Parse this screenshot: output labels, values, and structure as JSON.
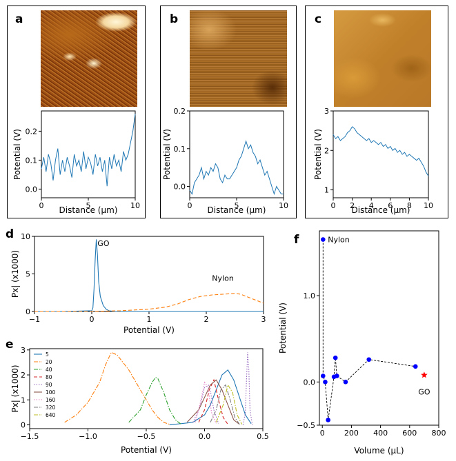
{
  "panel_letters": {
    "a": "a",
    "b": "b",
    "c": "c",
    "d": "d",
    "e": "e",
    "f": "f"
  },
  "colors": {
    "line_blue": "#1f77b4",
    "line_orange": "#ff7f0e",
    "line_green": "#2ca02c",
    "line_red": "#d62728",
    "line_purple": "#9467bd",
    "line_brown": "#8c564b",
    "line_pink": "#e377c2",
    "line_gray": "#7f7f7f",
    "line_olive": "#bcbd22",
    "point_blue": "#0000ff",
    "star_red": "#ff0000"
  },
  "chart_data": [
    {
      "id": "a",
      "type": "line",
      "image": "kpfm-map-a",
      "xlabel": "Distance (μm)",
      "ylabel": "Potential (V)",
      "xlim": [
        0,
        10
      ],
      "ylim": [
        -0.03,
        0.27
      ],
      "xticks": [
        0,
        5,
        10
      ],
      "yticks": [
        0.0,
        0.1,
        0.2
      ],
      "xtick_labels": [
        "0",
        "5",
        "10"
      ],
      "ytick_labels": [
        "0.0",
        "0.1",
        "0.2"
      ],
      "x": [
        0,
        0.25,
        0.5,
        0.75,
        1,
        1.25,
        1.5,
        1.75,
        2,
        2.25,
        2.5,
        2.75,
        3,
        3.25,
        3.5,
        3.75,
        4,
        4.25,
        4.5,
        4.75,
        5,
        5.25,
        5.5,
        5.75,
        6,
        6.25,
        6.5,
        6.75,
        7,
        7.25,
        7.5,
        7.75,
        8,
        8.25,
        8.5,
        8.75,
        9,
        9.25,
        9.5,
        9.75,
        10
      ],
      "y": [
        0.07,
        0.11,
        0.06,
        0.12,
        0.09,
        0.03,
        0.1,
        0.14,
        0.05,
        0.1,
        0.06,
        0.11,
        0.08,
        0.04,
        0.12,
        0.08,
        0.1,
        0.06,
        0.13,
        0.07,
        0.11,
        0.09,
        0.05,
        0.12,
        0.08,
        0.11,
        0.06,
        0.1,
        0.01,
        0.11,
        0.07,
        0.12,
        0.08,
        0.1,
        0.06,
        0.13,
        0.1,
        0.12,
        0.16,
        0.2,
        0.26
      ]
    },
    {
      "id": "b",
      "type": "line",
      "image": "kpfm-map-b",
      "xlabel": "Distance (μm)",
      "ylabel": "Potential (V)",
      "xlim": [
        0,
        10
      ],
      "ylim": [
        -0.03,
        0.2
      ],
      "xticks": [
        0,
        5,
        10
      ],
      "yticks": [
        0.0,
        0.1,
        0.2
      ],
      "xtick_labels": [
        "0",
        "5",
        "10"
      ],
      "ytick_labels": [
        "0.0",
        "0.1",
        "0.2"
      ],
      "x": [
        0,
        0.25,
        0.5,
        0.75,
        1,
        1.25,
        1.5,
        1.75,
        2,
        2.25,
        2.5,
        2.75,
        3,
        3.25,
        3.5,
        3.75,
        4,
        4.25,
        4.5,
        4.75,
        5,
        5.25,
        5.5,
        5.75,
        6,
        6.25,
        6.5,
        6.75,
        7,
        7.25,
        7.5,
        7.75,
        8,
        8.25,
        8.5,
        8.75,
        9,
        9.25,
        9.5,
        9.75,
        10
      ],
      "y": [
        -0.01,
        -0.02,
        0.01,
        0.02,
        0.03,
        0.05,
        0.02,
        0.04,
        0.03,
        0.05,
        0.04,
        0.06,
        0.05,
        0.02,
        0.01,
        0.03,
        0.02,
        0.02,
        0.03,
        0.04,
        0.05,
        0.07,
        0.08,
        0.1,
        0.12,
        0.1,
        0.11,
        0.09,
        0.08,
        0.06,
        0.07,
        0.05,
        0.03,
        0.04,
        0.02,
        0.0,
        -0.02,
        0.0,
        -0.01,
        -0.02,
        -0.02
      ]
    },
    {
      "id": "c",
      "type": "line",
      "image": "kpfm-map-c",
      "xlabel": "Distance (μm)",
      "ylabel": "Potential (V)",
      "xlim": [
        0,
        10
      ],
      "ylim": [
        0.8,
        3.0
      ],
      "xticks": [
        0,
        2,
        4,
        6,
        8,
        10
      ],
      "yticks": [
        1,
        2,
        3
      ],
      "xtick_labels": [
        "0",
        "2",
        "4",
        "6",
        "8",
        "10"
      ],
      "ytick_labels": [
        "1",
        "2",
        "3"
      ],
      "x": [
        0,
        0.25,
        0.5,
        0.75,
        1,
        1.25,
        1.5,
        1.75,
        2,
        2.25,
        2.5,
        2.75,
        3,
        3.25,
        3.5,
        3.75,
        4,
        4.25,
        4.5,
        4.75,
        5,
        5.25,
        5.5,
        5.75,
        6,
        6.25,
        6.5,
        6.75,
        7,
        7.25,
        7.5,
        7.75,
        8,
        8.25,
        8.5,
        8.75,
        9,
        9.25,
        9.5,
        9.75,
        10
      ],
      "y": [
        2.4,
        2.3,
        2.35,
        2.25,
        2.3,
        2.35,
        2.45,
        2.5,
        2.6,
        2.55,
        2.45,
        2.4,
        2.35,
        2.3,
        2.25,
        2.3,
        2.2,
        2.25,
        2.2,
        2.15,
        2.2,
        2.1,
        2.15,
        2.05,
        2.1,
        2.0,
        2.05,
        1.95,
        2.0,
        1.9,
        1.95,
        1.85,
        1.9,
        1.85,
        1.8,
        1.75,
        1.8,
        1.7,
        1.6,
        1.45,
        1.35
      ]
    },
    {
      "id": "d",
      "type": "line",
      "xlabel": "Potential (V)",
      "ylabel": "Px| (x1000)",
      "xlim": [
        -1,
        3
      ],
      "ylim": [
        0,
        10
      ],
      "xticks": [
        -1,
        0,
        1,
        2,
        3
      ],
      "yticks": [
        0,
        5,
        10
      ],
      "xtick_labels": [
        "−1",
        "0",
        "1",
        "2",
        "3"
      ],
      "ytick_labels": [
        "0",
        "5",
        "10"
      ],
      "annotations": [
        {
          "text": "GO",
          "x": 0.1,
          "y": 8.7
        },
        {
          "text": "Nylon",
          "x": 2.1,
          "y": 4.1
        }
      ],
      "series": [
        {
          "name": "GO",
          "style": "solid",
          "color": "#1f77b4",
          "x": [
            -1,
            -0.5,
            0,
            0.02,
            0.04,
            0.06,
            0.08,
            0.1,
            0.12,
            0.15,
            0.2,
            0.25,
            0.3,
            0.4,
            3
          ],
          "y": [
            0,
            0,
            0.1,
            0.5,
            3,
            7,
            9.6,
            7.5,
            4,
            2,
            0.8,
            0.3,
            0.1,
            0,
            0
          ]
        },
        {
          "name": "Nylon",
          "style": "dashed",
          "color": "#ff7f0e",
          "x": [
            -1,
            0,
            0.5,
            1,
            1.3,
            1.5,
            1.7,
            1.9,
            2.1,
            2.3,
            2.5,
            2.6,
            2.7,
            2.8,
            2.9,
            3
          ],
          "y": [
            0,
            0,
            0.1,
            0.3,
            0.6,
            1,
            1.6,
            2,
            2.2,
            2.3,
            2.4,
            2.3,
            2,
            1.7,
            1.4,
            1.1
          ]
        }
      ]
    },
    {
      "id": "e",
      "type": "line",
      "xlabel": "Potential (V)",
      "ylabel": "Px| (x1000)",
      "xlim": [
        -1.5,
        0.5
      ],
      "ylim": [
        -0.15,
        3.05
      ],
      "xticks": [
        -1.5,
        -1.0,
        -0.5,
        0.0,
        0.5
      ],
      "yticks": [
        0,
        1,
        2,
        3
      ],
      "xtick_labels": [
        "−1.5",
        "−1.0",
        "−0.5",
        "0.0",
        "0.5"
      ],
      "ytick_labels": [
        "0",
        "1",
        "2",
        "3"
      ],
      "legend": [
        "5",
        "20",
        "40",
        "80",
        "90",
        "100",
        "160",
        "320",
        "640"
      ],
      "series": [
        {
          "name": "5",
          "color": "#1f77b4",
          "style": "solid",
          "x": [
            -0.3,
            -0.1,
            0,
            0.05,
            0.1,
            0.15,
            0.2,
            0.25,
            0.3,
            0.35,
            0.4
          ],
          "y": [
            0,
            0.1,
            0.4,
            0.8,
            1.4,
            2.0,
            2.2,
            1.8,
            1.1,
            0.4,
            0.05
          ]
        },
        {
          "name": "20",
          "color": "#ff7f0e",
          "style": "dashdot",
          "x": [
            -1.2,
            -1.1,
            -1.0,
            -0.9,
            -0.85,
            -0.8,
            -0.75,
            -0.7,
            -0.65,
            -0.6,
            -0.55,
            -0.5,
            -0.45,
            -0.4,
            -0.35,
            -0.3
          ],
          "y": [
            0.1,
            0.4,
            0.9,
            1.7,
            2.4,
            2.9,
            2.8,
            2.5,
            2.2,
            1.8,
            1.4,
            1.0,
            0.6,
            0.3,
            0.1,
            0.02
          ]
        },
        {
          "name": "40",
          "color": "#2ca02c",
          "style": "dashdot",
          "x": [
            -0.65,
            -0.55,
            -0.5,
            -0.45,
            -0.42,
            -0.4,
            -0.35,
            -0.3,
            -0.25,
            -0.2
          ],
          "y": [
            0.1,
            0.6,
            1.2,
            1.7,
            1.9,
            1.85,
            1.3,
            0.6,
            0.2,
            0.02
          ]
        },
        {
          "name": "80",
          "color": "#d62728",
          "style": "dashed",
          "x": [
            -0.05,
            0,
            0.04,
            0.08,
            0.12,
            0.16,
            0.2
          ],
          "y": [
            0.1,
            0.6,
            1.4,
            1.8,
            1.0,
            0.3,
            0.02
          ]
        },
        {
          "name": "90",
          "color": "#9467bd",
          "style": "dotted",
          "x": [
            -0.1,
            -0.04,
            0,
            0.04,
            0.08,
            0.12
          ],
          "y": [
            0.1,
            0.7,
            1.5,
            1.6,
            0.6,
            0.05
          ]
        },
        {
          "name": "100",
          "color": "#8c564b",
          "style": "solid",
          "x": [
            -0.15,
            -0.05,
            0,
            0.05,
            0.1,
            0.15,
            0.2,
            0.25,
            0.3
          ],
          "y": [
            0.1,
            0.6,
            1.1,
            1.6,
            1.8,
            1.4,
            0.8,
            0.2,
            0.02
          ]
        },
        {
          "name": "160",
          "color": "#e377c2",
          "style": "dotted",
          "x": [
            -0.08,
            -0.04,
            0,
            0.03,
            0.06,
            0.1
          ],
          "y": [
            0.1,
            0.8,
            1.7,
            1.5,
            0.5,
            0.05
          ]
        },
        {
          "name": "320",
          "color": "#7f7f7f",
          "style": "dashdot",
          "x": [
            0.05,
            0.1,
            0.14,
            0.18,
            0.22,
            0.26,
            0.3
          ],
          "y": [
            0.1,
            0.6,
            1.4,
            1.6,
            1.0,
            0.3,
            0.02
          ]
        },
        {
          "name": "640",
          "color": "#bcbd22",
          "style": "dashdot",
          "x": [
            0.1,
            0.16,
            0.2,
            0.24,
            0.28,
            0.32
          ],
          "y": [
            0.1,
            0.8,
            1.6,
            1.3,
            0.4,
            0.02
          ]
        },
        {
          "name": "",
          "color": "#9467bd",
          "style": "dotted",
          "x": [
            0.33,
            0.35,
            0.36,
            0.37,
            0.38,
            0.39,
            0.41
          ],
          "y": [
            0,
            0.5,
            1.8,
            2.9,
            2.2,
            0.6,
            0
          ]
        }
      ]
    },
    {
      "id": "f",
      "type": "scatter",
      "xlabel": "Volume (μL)",
      "ylabel": "Potential (V)",
      "xlim": [
        -20,
        800
      ],
      "ylim": [
        -0.5,
        1.75
      ],
      "xticks": [
        0,
        200,
        400,
        600,
        800
      ],
      "yticks": [
        -0.5,
        0.0,
        1.0
      ],
      "xtick_labels": [
        "0",
        "200",
        "400",
        "600",
        "800"
      ],
      "ytick_labels": [
        "−0.5",
        "0.0",
        "1.0"
      ],
      "points": [
        {
          "x": 5,
          "y": 1.65
        },
        {
          "x": 5,
          "y": 0.07
        },
        {
          "x": 20,
          "y": 0.0
        },
        {
          "x": 40,
          "y": -0.44
        },
        {
          "x": 80,
          "y": 0.06
        },
        {
          "x": 90,
          "y": 0.28
        },
        {
          "x": 100,
          "y": 0.07
        },
        {
          "x": 160,
          "y": 0.0
        },
        {
          "x": 320,
          "y": 0.26
        },
        {
          "x": 640,
          "y": 0.18
        }
      ],
      "star": {
        "x": 700,
        "y": 0.08,
        "label": "GO"
      },
      "annotations": [
        {
          "text": "Nylon"
        },
        {
          "text": "GO"
        }
      ]
    }
  ]
}
